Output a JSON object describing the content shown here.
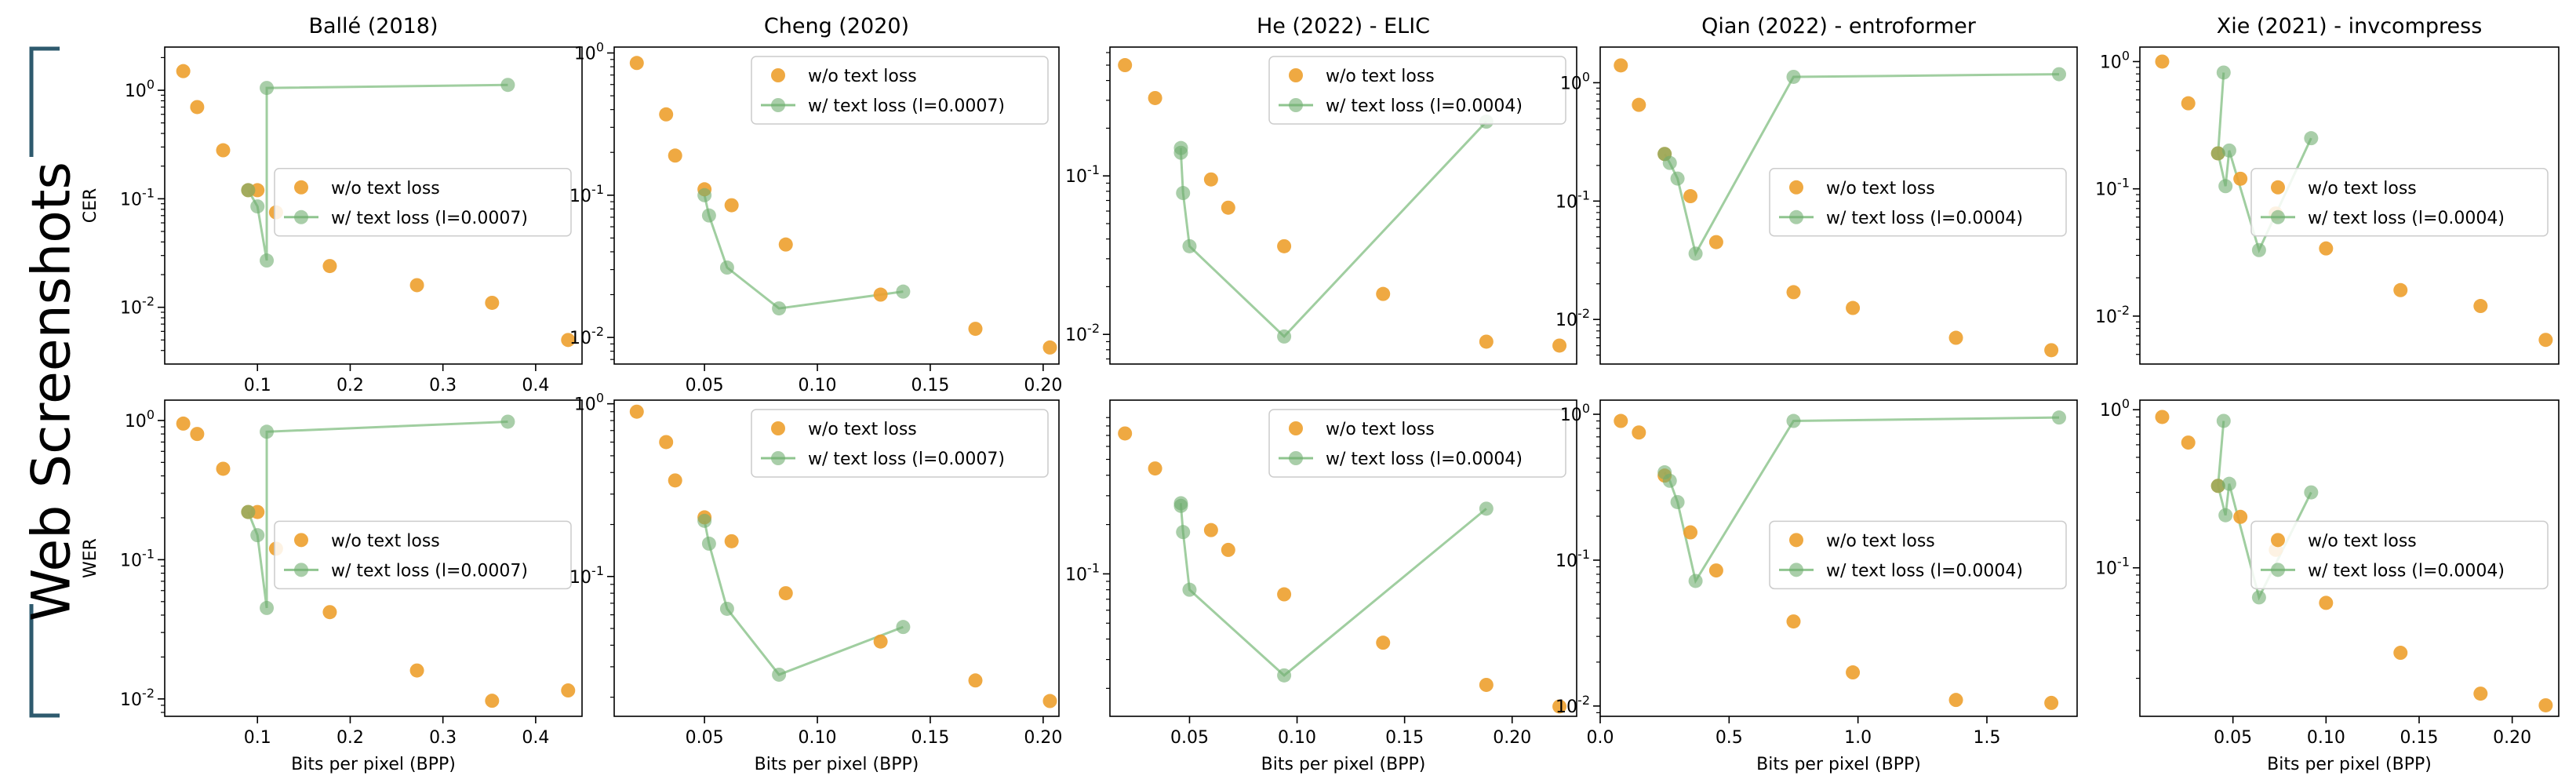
{
  "side_label": "Web Screenshots",
  "colors": {
    "orange": "#EDA02D",
    "green": "#8FC58F",
    "green_dark": "#6FAE6F",
    "bracket": "#2E5A6E"
  },
  "legend_labels": {
    "wo": "w/o text loss",
    "w_prefix": "w/ text loss"
  },
  "xlabel": "Bits per pixel (BPP)",
  "row_labels": [
    "CER",
    "WER"
  ],
  "chart_data": [
    {
      "type": "scatter",
      "title": "Ballé (2018)",
      "ylabel": "CER",
      "yscale": "log",
      "xlim": [
        0.0,
        0.45
      ],
      "ylim": [
        0.003,
        2.5
      ],
      "xticks": [
        0.1,
        0.2,
        0.3,
        0.4
      ],
      "xtick_labels": [
        "0.1",
        "0.2",
        "0.3",
        "0.4"
      ],
      "yticks": [
        0.01,
        0.1,
        1
      ],
      "ytick_labels": [
        "10^-2",
        "10^-1",
        "10^0"
      ],
      "legend_pos": "center-right",
      "lambda": "0.0007",
      "series": [
        {
          "name": "w/o text loss",
          "x": [
            0.02,
            0.035,
            0.063,
            0.09,
            0.1,
            0.12,
            0.178,
            0.272,
            0.353,
            0.435
          ],
          "y": [
            1.5,
            0.7,
            0.28,
            0.12,
            0.12,
            0.075,
            0.024,
            0.016,
            0.011,
            0.005
          ]
        },
        {
          "name": "w/ text loss (l=0.0007)",
          "x": [
            0.09,
            0.1,
            0.11,
            0.11,
            0.37
          ],
          "y": [
            0.12,
            0.085,
            0.027,
            1.05,
            1.12
          ]
        }
      ]
    },
    {
      "type": "scatter",
      "title": "Cheng (2020)",
      "ylabel": "",
      "yscale": "log",
      "xlim": [
        0.01,
        0.207
      ],
      "ylim": [
        0.0065,
        1.1
      ],
      "xticks": [
        0.05,
        0.1,
        0.15,
        0.2
      ],
      "xtick_labels": [
        "0.05",
        "0.10",
        "0.15",
        "0.20"
      ],
      "yticks": [
        0.01,
        0.1,
        1
      ],
      "ytick_labels": [
        "10^-2",
        "10^-1",
        "10^0"
      ],
      "legend_pos": "top-right",
      "lambda": "0.0007",
      "series": [
        {
          "name": "w/o text loss",
          "x": [
            0.02,
            0.033,
            0.037,
            0.05,
            0.062,
            0.086,
            0.128,
            0.17,
            0.203
          ],
          "y": [
            0.85,
            0.37,
            0.19,
            0.11,
            0.085,
            0.045,
            0.02,
            0.0115,
            0.0085
          ]
        },
        {
          "name": "w/ text loss (l=0.0007)",
          "x": [
            0.05,
            0.052,
            0.06,
            0.083,
            0.138
          ],
          "y": [
            0.1,
            0.072,
            0.031,
            0.016,
            0.021
          ]
        }
      ]
    },
    {
      "type": "scatter",
      "title": "He (2022) - ELIC",
      "ylabel": "",
      "yscale": "log",
      "xlim": [
        0.013,
        0.23
      ],
      "ylim": [
        0.0065,
        0.65
      ],
      "xticks": [],
      "xtick_labels": [],
      "yticks": [
        0.01,
        0.1
      ],
      "ytick_labels": [
        "10^-2",
        "10^-1"
      ],
      "legend_pos": "top-right",
      "lambda": "0.0004",
      "series": [
        {
          "name": "w/o text loss",
          "x": [
            0.02,
            0.034,
            0.06,
            0.068,
            0.094,
            0.14,
            0.188,
            0.222
          ],
          "y": [
            0.5,
            0.31,
            0.095,
            0.063,
            0.036,
            0.018,
            0.009,
            0.0085
          ]
        },
        {
          "name": "w/ text loss (l=0.0004)",
          "x": [
            0.046,
            0.046,
            0.047,
            0.05,
            0.094,
            0.188
          ],
          "y": [
            0.15,
            0.14,
            0.078,
            0.036,
            0.0097,
            0.22
          ]
        }
      ]
    },
    {
      "type": "scatter",
      "title": "Qian (2022) - entroformer",
      "ylabel": "",
      "yscale": "log",
      "xlim": [
        0.0,
        1.85
      ],
      "ylim": [
        0.0042,
        2.0
      ],
      "xticks": [],
      "xtick_labels": [],
      "yticks": [
        0.01,
        0.1,
        1
      ],
      "ytick_labels": [
        "10^-2",
        "10^-1",
        "10^0"
      ],
      "legend_pos": "center-right",
      "lambda": "0.0004",
      "series": [
        {
          "name": "w/o text loss",
          "x": [
            0.08,
            0.15,
            0.25,
            0.35,
            0.45,
            0.75,
            0.98,
            1.38,
            1.75
          ],
          "y": [
            1.4,
            0.65,
            0.25,
            0.11,
            0.045,
            0.017,
            0.0125,
            0.007,
            0.0055
          ]
        },
        {
          "name": "w/ text loss (l=0.0004)",
          "x": [
            0.25,
            0.27,
            0.3,
            0.37,
            0.75,
            1.78
          ],
          "y": [
            0.25,
            0.21,
            0.155,
            0.036,
            1.12,
            1.18
          ]
        }
      ]
    },
    {
      "type": "scatter",
      "title": "Xie (2021) - invcompress",
      "ylabel": "",
      "yscale": "log",
      "xlim": [
        0.0,
        0.225
      ],
      "ylim": [
        0.0042,
        1.3
      ],
      "xticks": [],
      "xtick_labels": [],
      "yticks": [
        0.01,
        0.1,
        1
      ],
      "ytick_labels": [
        "10^-2",
        "10^-1",
        "10^0"
      ],
      "legend_pos": "center-right",
      "lambda": "0.0004",
      "series": [
        {
          "name": "w/o text loss",
          "x": [
            0.012,
            0.026,
            0.042,
            0.054,
            0.073,
            0.1,
            0.14,
            0.183,
            0.218
          ],
          "y": [
            1.0,
            0.47,
            0.19,
            0.12,
            0.064,
            0.034,
            0.016,
            0.012,
            0.0065
          ]
        },
        {
          "name": "w/ text loss (l=0.0004)",
          "x": [
            0.045,
            0.042,
            0.046,
            0.048,
            0.064,
            0.092
          ],
          "y": [
            0.82,
            0.19,
            0.105,
            0.2,
            0.033,
            0.25
          ]
        }
      ]
    },
    {
      "type": "scatter",
      "title": "",
      "ylabel": "WER",
      "yscale": "log",
      "xlim": [
        0.0,
        0.45
      ],
      "ylim": [
        0.0075,
        1.4
      ],
      "xticks": [
        0.1,
        0.2,
        0.3,
        0.4
      ],
      "xtick_labels": [
        "0.1",
        "0.2",
        "0.3",
        "0.4"
      ],
      "yticks": [
        0.01,
        0.1,
        1
      ],
      "ytick_labels": [
        "10^-2",
        "10^-1",
        "10^0"
      ],
      "legend_pos": "center-right",
      "lambda": "0.0007",
      "series": [
        {
          "name": "w/o text loss",
          "x": [
            0.02,
            0.035,
            0.063,
            0.09,
            0.1,
            0.12,
            0.178,
            0.272,
            0.353,
            0.435
          ],
          "y": [
            0.95,
            0.8,
            0.45,
            0.22,
            0.22,
            0.12,
            0.042,
            0.016,
            0.0097,
            0.0115
          ]
        },
        {
          "name": "w/ text loss (l=0.0007)",
          "x": [
            0.09,
            0.1,
            0.11,
            0.11,
            0.37
          ],
          "y": [
            0.22,
            0.15,
            0.045,
            0.83,
            0.98
          ]
        }
      ]
    },
    {
      "type": "scatter",
      "title": "",
      "ylabel": "",
      "yscale": "log",
      "xlim": [
        0.01,
        0.207
      ],
      "ylim": [
        0.0155,
        1.05
      ],
      "xticks": [
        0.05,
        0.1,
        0.15,
        0.2
      ],
      "xtick_labels": [
        "0.05",
        "0.10",
        "0.15",
        "0.20"
      ],
      "yticks": [
        0.1,
        1
      ],
      "ytick_labels": [
        "10^-1",
        "10^0"
      ],
      "legend_pos": "top-right",
      "lambda": "0.0007",
      "series": [
        {
          "name": "w/o text loss",
          "x": [
            0.02,
            0.033,
            0.037,
            0.05,
            0.062,
            0.086,
            0.128,
            0.17,
            0.203
          ],
          "y": [
            0.9,
            0.6,
            0.36,
            0.22,
            0.16,
            0.08,
            0.042,
            0.025,
            0.019
          ]
        },
        {
          "name": "w/ text loss (l=0.0007)",
          "x": [
            0.05,
            0.052,
            0.06,
            0.083,
            0.138
          ],
          "y": [
            0.21,
            0.155,
            0.065,
            0.027,
            0.051
          ]
        }
      ]
    },
    {
      "type": "scatter",
      "title": "",
      "ylabel": "",
      "yscale": "log",
      "xlim": [
        0.013,
        0.23
      ],
      "ylim": [
        0.0135,
        1.15
      ],
      "xticks": [
        0.05,
        0.1,
        0.15,
        0.2
      ],
      "xtick_labels": [
        "0.05",
        "0.10",
        "0.15",
        "0.20"
      ],
      "yticks": [
        0.1
      ],
      "ytick_labels": [
        "10^-1"
      ],
      "legend_pos": "top-right",
      "lambda": "0.0004",
      "series": [
        {
          "name": "w/o text loss",
          "x": [
            0.02,
            0.034,
            0.06,
            0.068,
            0.094,
            0.14,
            0.188,
            0.222
          ],
          "y": [
            0.72,
            0.44,
            0.185,
            0.14,
            0.075,
            0.038,
            0.021,
            0.0155
          ]
        },
        {
          "name": "w/ text loss (l=0.0004)",
          "x": [
            0.046,
            0.046,
            0.047,
            0.05,
            0.094,
            0.188
          ],
          "y": [
            0.27,
            0.26,
            0.18,
            0.08,
            0.024,
            0.25
          ]
        }
      ]
    },
    {
      "type": "scatter",
      "title": "",
      "ylabel": "",
      "yscale": "log",
      "xlim": [
        0.0,
        1.85
      ],
      "ylim": [
        0.0085,
        1.25
      ],
      "xticks": [
        0.0,
        0.5,
        1.0,
        1.5
      ],
      "xtick_labels": [
        "0.0",
        "0.5",
        "1.0",
        "1.5"
      ],
      "yticks": [
        0.01,
        0.1,
        1
      ],
      "ytick_labels": [
        "10^-2",
        "10^-1",
        "10^0"
      ],
      "legend_pos": "center-right",
      "lambda": "0.0004",
      "series": [
        {
          "name": "w/o text loss",
          "x": [
            0.08,
            0.15,
            0.25,
            0.35,
            0.45,
            0.75,
            0.98,
            1.38,
            1.75
          ],
          "y": [
            0.9,
            0.75,
            0.38,
            0.155,
            0.085,
            0.038,
            0.017,
            0.011,
            0.0105
          ]
        },
        {
          "name": "w/ text loss (l=0.0004)",
          "x": [
            0.25,
            0.27,
            0.3,
            0.37,
            0.75,
            1.78
          ],
          "y": [
            0.4,
            0.35,
            0.25,
            0.072,
            0.9,
            0.95
          ]
        }
      ]
    },
    {
      "type": "scatter",
      "title": "",
      "ylabel": "",
      "yscale": "log",
      "xlim": [
        0.0,
        0.225
      ],
      "ylim": [
        0.0115,
        1.15
      ],
      "xticks": [
        0.05,
        0.1,
        0.15,
        0.2
      ],
      "xtick_labels": [
        "0.05",
        "0.10",
        "0.15",
        "0.20"
      ],
      "yticks": [
        0.1,
        1
      ],
      "ytick_labels": [
        "10^-1",
        "10^0"
      ],
      "legend_pos": "center-right",
      "lambda": "0.0004",
      "series": [
        {
          "name": "w/o text loss",
          "x": [
            0.012,
            0.026,
            0.042,
            0.054,
            0.073,
            0.1,
            0.14,
            0.183,
            0.218
          ],
          "y": [
            0.9,
            0.62,
            0.33,
            0.21,
            0.13,
            0.06,
            0.029,
            0.016,
            0.0135
          ]
        },
        {
          "name": "w/ text loss (l=0.0004)",
          "x": [
            0.045,
            0.042,
            0.046,
            0.048,
            0.064,
            0.092
          ],
          "y": [
            0.85,
            0.33,
            0.215,
            0.34,
            0.065,
            0.3
          ]
        }
      ]
    }
  ]
}
